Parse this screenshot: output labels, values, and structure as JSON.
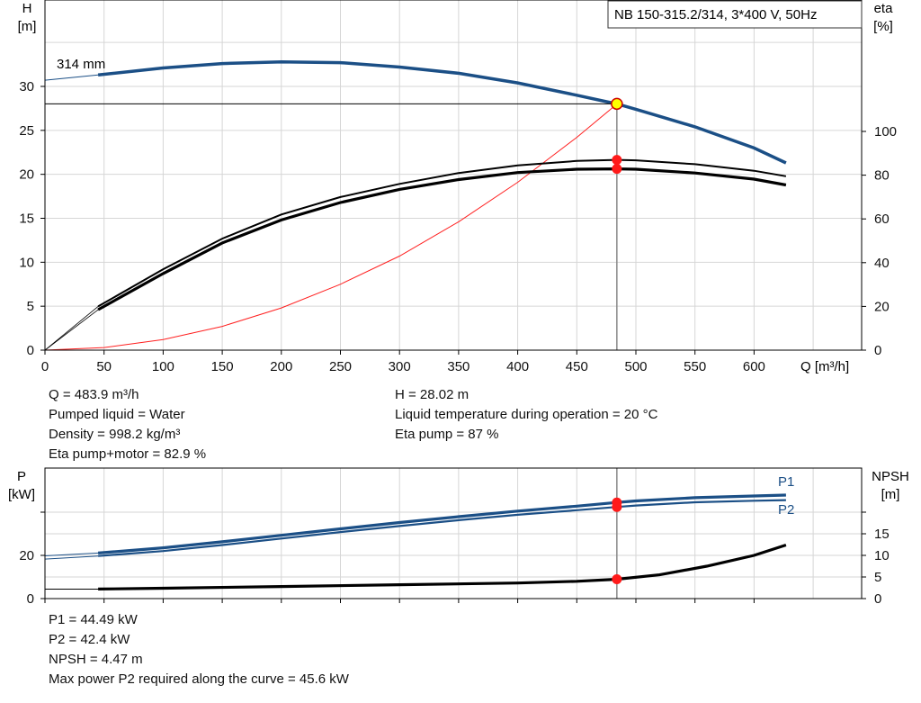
{
  "chart_data": [
    {
      "type": "line",
      "title": "NB 150-315.2/314, 3*400 V, 50Hz",
      "xlabel": "Q [m³/h]",
      "ylabel": "H",
      "ylabel_unit": "[m]",
      "y2label": "eta",
      "y2label_unit": "[%]",
      "xlim": [
        0,
        650
      ],
      "ylim": [
        0,
        35
      ],
      "y2lim": [
        0,
        140
      ],
      "x_ticks": [
        0,
        50,
        100,
        150,
        200,
        250,
        300,
        350,
        400,
        450,
        500,
        550,
        600
      ],
      "y_ticks": [
        0,
        5,
        10,
        15,
        20,
        25,
        30
      ],
      "y2_ticks": [
        0,
        20,
        40,
        60,
        80,
        100
      ],
      "grid": true,
      "curve_label": "314 mm",
      "series": [
        {
          "role": "head",
          "axis": "left",
          "color": "#1b4f86",
          "x": [
            45,
            100,
            150,
            200,
            250,
            300,
            350,
            400,
            450,
            484,
            500,
            550,
            600,
            627
          ],
          "y": [
            31.3,
            32.1,
            32.6,
            32.8,
            32.7,
            32.2,
            31.5,
            30.4,
            29.0,
            28.0,
            27.4,
            25.4,
            23.0,
            21.3
          ]
        },
        {
          "role": "eta-pump",
          "axis": "right",
          "color": "#000000",
          "x": [
            45,
            100,
            150,
            200,
            250,
            300,
            350,
            400,
            450,
            484,
            500,
            550,
            600,
            627
          ],
          "y": [
            20,
            37,
            51,
            62,
            70,
            76,
            81,
            84.5,
            86.5,
            87,
            86.8,
            85,
            82,
            79.5
          ]
        },
        {
          "role": "eta-pump-motor",
          "axis": "right",
          "color": "#000000",
          "x": [
            45,
            100,
            150,
            200,
            250,
            300,
            350,
            400,
            450,
            484,
            500,
            550,
            600,
            627
          ],
          "y": [
            18.5,
            35,
            49,
            59.5,
            67.5,
            73.5,
            78,
            81.2,
            82.7,
            82.9,
            82.7,
            81,
            78.2,
            75.5
          ]
        },
        {
          "role": "system-curve",
          "axis": "left",
          "color": "#ff2020",
          "x": [
            0,
            50,
            100,
            150,
            200,
            250,
            300,
            350,
            400,
            450,
            484
          ],
          "y": [
            0,
            0.3,
            1.2,
            2.7,
            4.8,
            7.5,
            10.7,
            14.6,
            19.1,
            24.2,
            28.0
          ]
        }
      ],
      "duty_point": {
        "q": 483.9,
        "h": 28.02,
        "eta_pump": 87,
        "eta_total": 82.9
      }
    },
    {
      "type": "line",
      "ylabel": "P",
      "ylabel_unit": "[kW]",
      "y2label": "NPSH",
      "y2label_unit": "[m]",
      "xlim": [
        0,
        650
      ],
      "ylim": [
        0,
        50
      ],
      "y2lim": [
        0,
        25
      ],
      "y_ticks": [
        0,
        20
      ],
      "y2_ticks": [
        0,
        5,
        10,
        15
      ],
      "grid": true,
      "series": [
        {
          "name": "P1",
          "axis": "left",
          "color": "#1b4f86",
          "x": [
            45,
            100,
            150,
            200,
            250,
            300,
            350,
            400,
            450,
            484,
            500,
            550,
            600,
            627
          ],
          "y": [
            21.1,
            23.5,
            26.3,
            29.3,
            32.3,
            35.2,
            37.9,
            40.5,
            42.8,
            44.49,
            45.2,
            46.7,
            47.5,
            47.9
          ]
        },
        {
          "name": "P2",
          "axis": "left",
          "color": "#1b4f86",
          "x": [
            45,
            100,
            150,
            200,
            250,
            300,
            350,
            400,
            450,
            484,
            500,
            550,
            600,
            627
          ],
          "y": [
            19.7,
            22.0,
            24.8,
            27.8,
            30.8,
            33.6,
            36.3,
            38.8,
            40.9,
            42.4,
            43.1,
            44.6,
            45.3,
            45.6
          ]
        },
        {
          "name": "NPSH",
          "axis": "right",
          "color": "#000000",
          "x": [
            45,
            100,
            200,
            300,
            400,
            450,
            484,
            520,
            560,
            600,
            627
          ],
          "y": [
            2.2,
            2.4,
            2.8,
            3.2,
            3.6,
            4.0,
            4.47,
            5.5,
            7.5,
            10.0,
            12.4
          ]
        }
      ],
      "duty_point": {
        "p1": 44.49,
        "p2": 42.4,
        "npsh": 4.47
      }
    }
  ],
  "info_top": {
    "q": "Q = 483.9 m³/h",
    "liquid": "Pumped liquid = Water",
    "density": "Density = 998.2 kg/m³",
    "eta_total": "Eta pump+motor = 82.9 %",
    "h": "H = 28.02 m",
    "temp": "Liquid temperature during operation = 20 °C",
    "eta_pump": "Eta pump = 87 %"
  },
  "info_bottom": {
    "p1": "P1 = 44.49 kW",
    "p2": "P2 = 42.4 kW",
    "npsh": "NPSH = 4.47 m",
    "pmax": "Max power P2 required along the curve = 45.6 kW"
  }
}
